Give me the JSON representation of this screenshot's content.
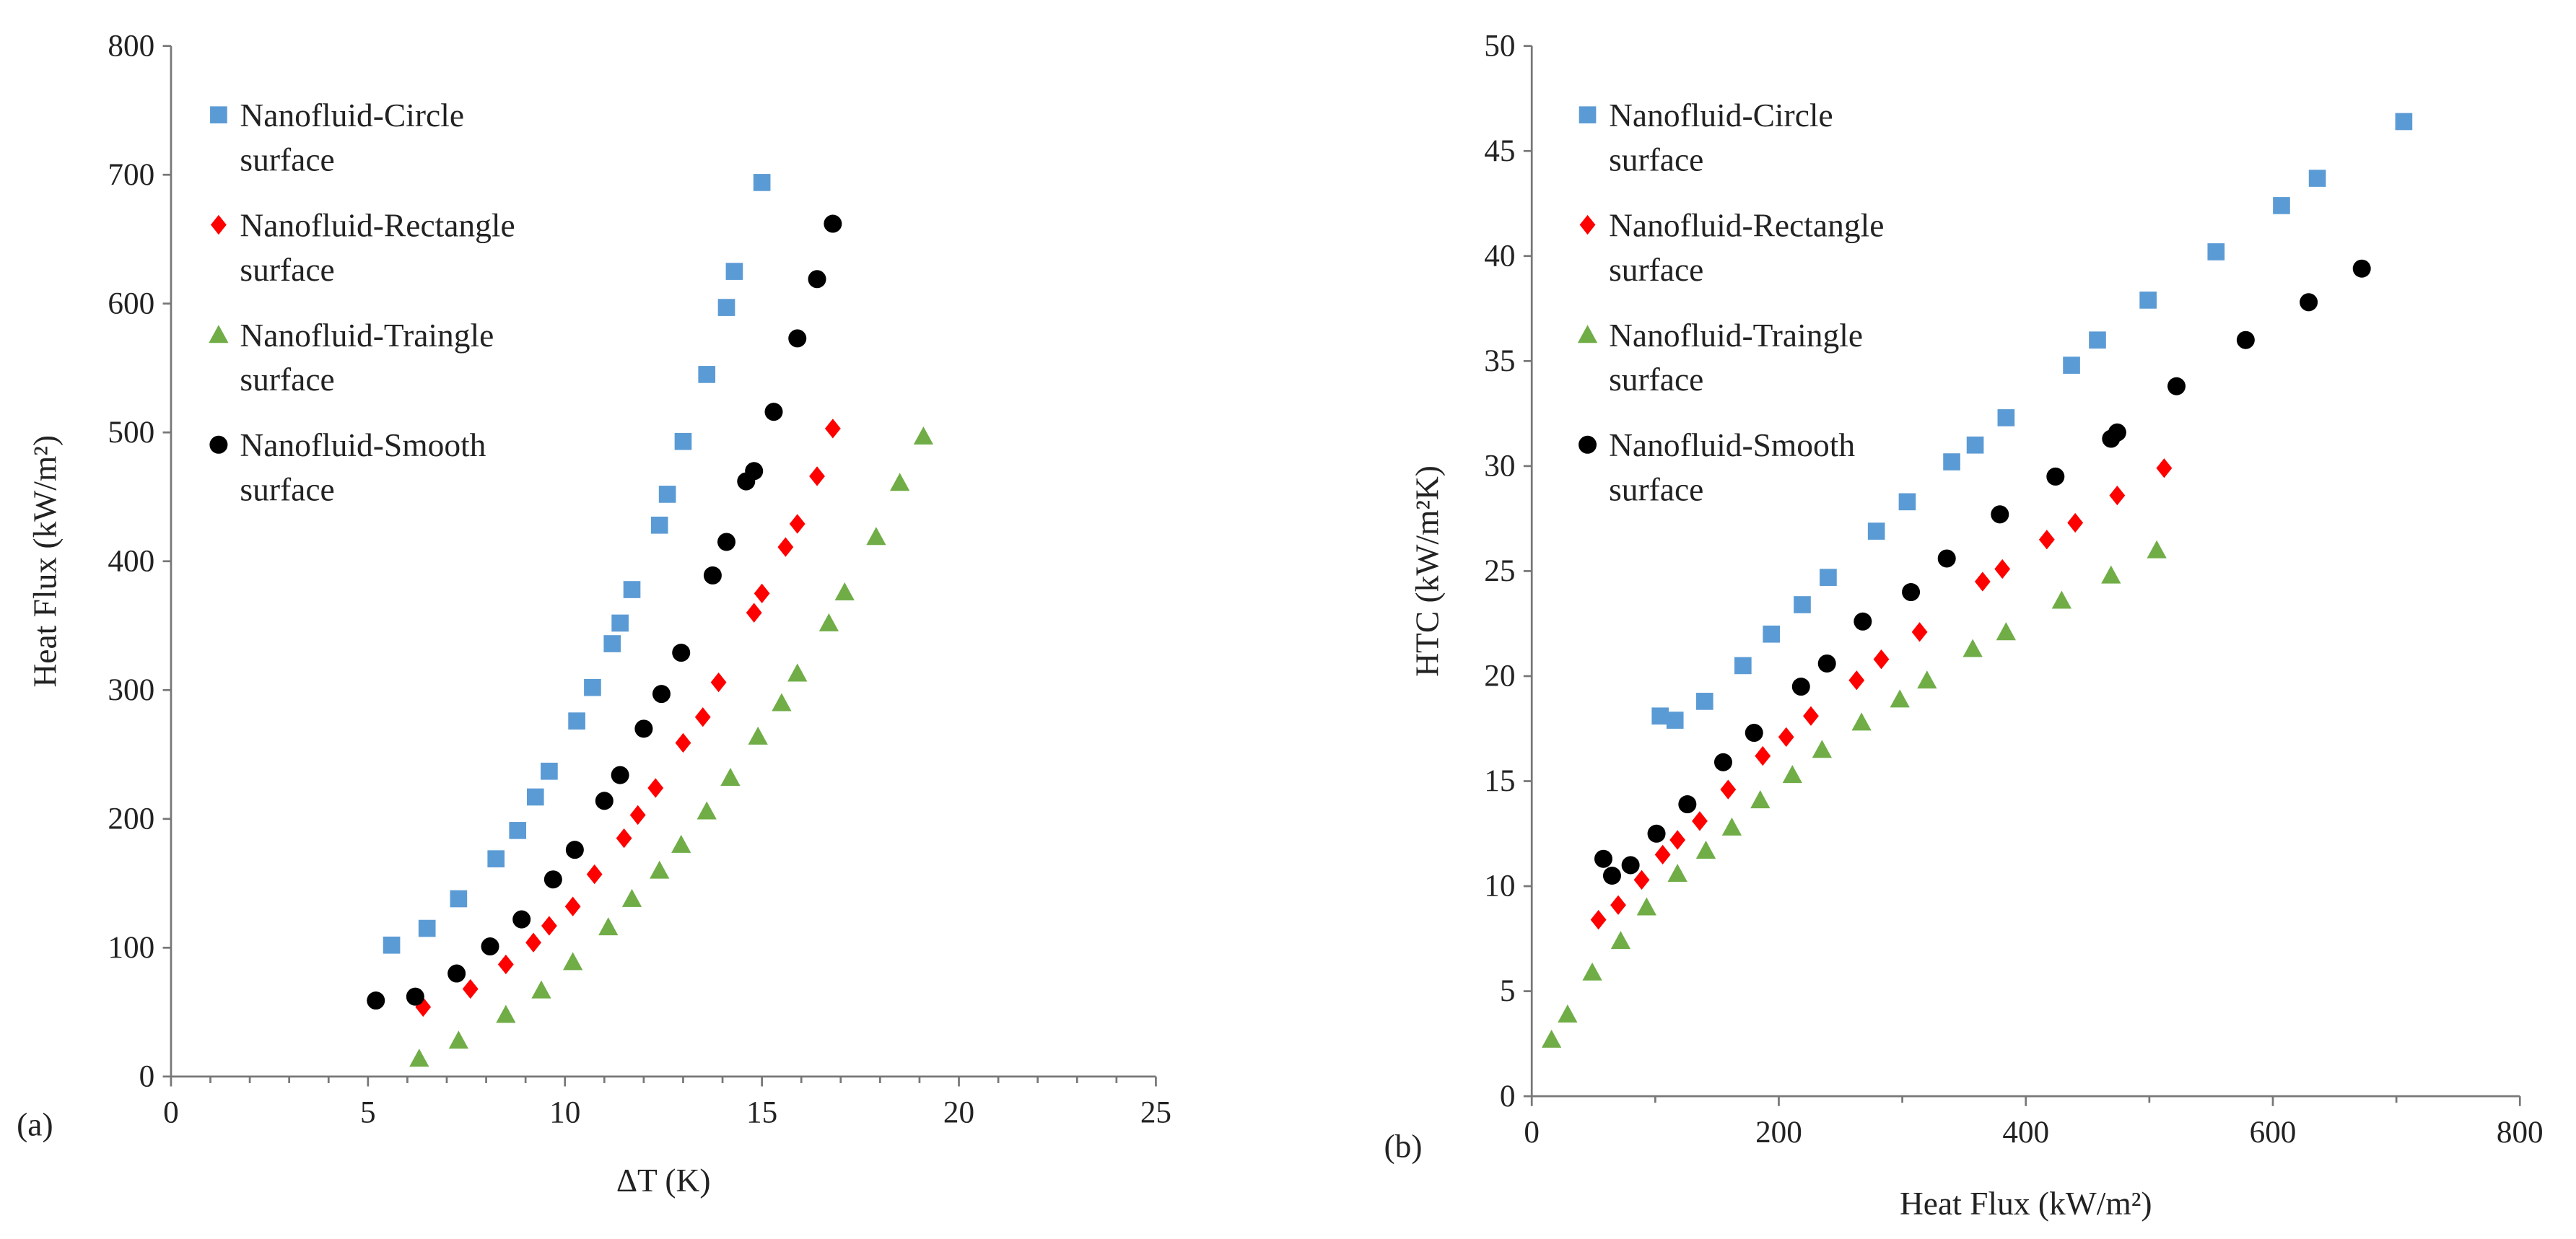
{
  "colors": {
    "circle": "#5b9bd5",
    "rectangle": "#ff0000",
    "triangle": "#70ad47",
    "smooth": "#000000"
  },
  "chart_data": [
    {
      "type": "scatter",
      "panel_label": "(a)",
      "xlabel": "ΔT (K)",
      "ylabel": "Heat Flux (kW/m²)",
      "xlim": [
        0,
        25
      ],
      "ylim": [
        0,
        800
      ],
      "xticks": [
        "0",
        "5",
        "10",
        "15",
        "20",
        "25"
      ],
      "yticks": [
        "0",
        "100",
        "200",
        "300",
        "400",
        "500",
        "600",
        "700",
        "800"
      ],
      "grid": false,
      "legend_position": "top-left",
      "series": [
        {
          "name": "Nanofluid-Circle",
          "name2": "surface",
          "marker": "square",
          "color_key": "circle",
          "x": [
            5.6,
            6.5,
            7.3,
            8.25,
            8.8,
            9.25,
            9.6,
            10.3,
            10.7,
            11.2,
            11.4,
            11.7,
            12.4,
            12.6,
            13.0,
            13.6,
            14.1,
            14.3,
            15.0
          ],
          "y": [
            102,
            115,
            138,
            169,
            191,
            217,
            237,
            276,
            302,
            336,
            352,
            378,
            428,
            452,
            493,
            545,
            597,
            625,
            694
          ]
        },
        {
          "name": "Nanofluid-Rectangle",
          "name2": "surface",
          "marker": "diamond",
          "color_key": "rectangle",
          "x": [
            6.4,
            7.6,
            8.5,
            9.2,
            9.6,
            10.2,
            10.75,
            11.5,
            11.85,
            12.3,
            13.0,
            13.5,
            13.9,
            14.8,
            15.0,
            15.6,
            15.9,
            16.4,
            16.8
          ],
          "y": [
            54,
            68,
            87,
            104,
            117,
            132,
            157,
            185,
            203,
            224,
            259,
            279,
            306,
            360,
            375,
            411,
            429,
            466,
            503
          ]
        },
        {
          "name": "Nanofluid-Traingle",
          "name2": "surface",
          "marker": "triangle",
          "color_key": "triangle",
          "x": [
            6.3,
            7.3,
            8.5,
            9.4,
            10.2,
            11.1,
            11.7,
            12.4,
            12.95,
            13.6,
            14.2,
            14.9,
            15.5,
            15.9,
            16.7,
            17.1,
            17.9,
            18.5,
            19.1
          ],
          "y": [
            14,
            28,
            48,
            67,
            89,
            116,
            138,
            160,
            180,
            206,
            232,
            264,
            290,
            313,
            352,
            376,
            419,
            461,
            497
          ]
        },
        {
          "name": "Nanofluid-Smooth",
          "name2": "surface",
          "marker": "circle",
          "color_key": "smooth",
          "x": [
            5.2,
            6.2,
            7.25,
            8.1,
            8.9,
            9.7,
            10.25,
            11.0,
            11.4,
            12.0,
            12.45,
            12.95,
            13.75,
            14.1,
            14.6,
            14.8,
            15.3,
            15.9,
            16.4,
            16.8
          ],
          "y": [
            59,
            62,
            80,
            101,
            122,
            153,
            176,
            214,
            234,
            270,
            297,
            329,
            389,
            415,
            462,
            470,
            516,
            573,
            619,
            662
          ]
        }
      ]
    },
    {
      "type": "scatter",
      "panel_label": "(b)",
      "xlabel": "Heat Flux (kW/m²)",
      "ylabel": "HTC (kW/m²K)",
      "xlim": [
        0,
        800
      ],
      "ylim": [
        0,
        50
      ],
      "xticks": [
        "0",
        "200",
        "400",
        "600",
        "800"
      ],
      "yticks": [
        "0",
        "5",
        "10",
        "15",
        "20",
        "25",
        "30",
        "35",
        "40",
        "45",
        "50"
      ],
      "grid": false,
      "legend_position": "top-left",
      "series": [
        {
          "name": "Nanofluid-Circle",
          "name2": "surface",
          "marker": "square",
          "color_key": "circle",
          "x": [
            104,
            116,
            140,
            171,
            194,
            219,
            240,
            279,
            304,
            340,
            359,
            384,
            437,
            458,
            499,
            554,
            607,
            636,
            706
          ],
          "y": [
            18.1,
            17.9,
            18.8,
            20.5,
            22.0,
            23.4,
            24.7,
            26.9,
            28.3,
            30.2,
            31.0,
            32.3,
            34.8,
            36.0,
            37.9,
            40.2,
            42.4,
            43.7,
            46.4
          ]
        },
        {
          "name": "Nanofluid-Rectangle",
          "name2": "surface",
          "marker": "diamond",
          "color_key": "rectangle",
          "x": [
            54,
            70,
            89,
            106,
            118,
            136,
            159,
            187,
            206,
            226,
            263,
            283,
            314,
            365,
            381,
            417,
            440,
            474,
            512
          ],
          "y": [
            8.4,
            9.1,
            10.3,
            11.5,
            12.2,
            13.1,
            14.6,
            16.2,
            17.1,
            18.1,
            19.8,
            20.8,
            22.1,
            24.5,
            25.1,
            26.5,
            27.3,
            28.6,
            29.9
          ]
        },
        {
          "name": "Nanofluid-Traingle",
          "name2": "surface",
          "marker": "triangle",
          "color_key": "triangle",
          "x": [
            16,
            29,
            49,
            72,
            93,
            118,
            141,
            162,
            185,
            211,
            235,
            267,
            298,
            320,
            357,
            384,
            429,
            469,
            506
          ],
          "y": [
            2.7,
            3.9,
            5.9,
            7.4,
            9.0,
            10.6,
            11.7,
            12.8,
            14.1,
            15.3,
            16.5,
            17.8,
            18.9,
            19.8,
            21.3,
            22.1,
            23.6,
            24.8,
            26.0
          ]
        },
        {
          "name": "Nanofluid-Smooth",
          "name2": "surface",
          "marker": "circle",
          "color_key": "smooth",
          "x": [
            58,
            65,
            80,
            101,
            126,
            155,
            180,
            218,
            239,
            268,
            307,
            336,
            379,
            424,
            469,
            474,
            522,
            578,
            629,
            672
          ],
          "y": [
            11.3,
            10.5,
            11.0,
            12.5,
            13.9,
            15.9,
            17.3,
            19.5,
            20.6,
            22.6,
            24.0,
            25.6,
            27.7,
            29.5,
            31.3,
            31.6,
            33.8,
            36.0,
            37.8,
            39.4
          ]
        }
      ]
    }
  ]
}
